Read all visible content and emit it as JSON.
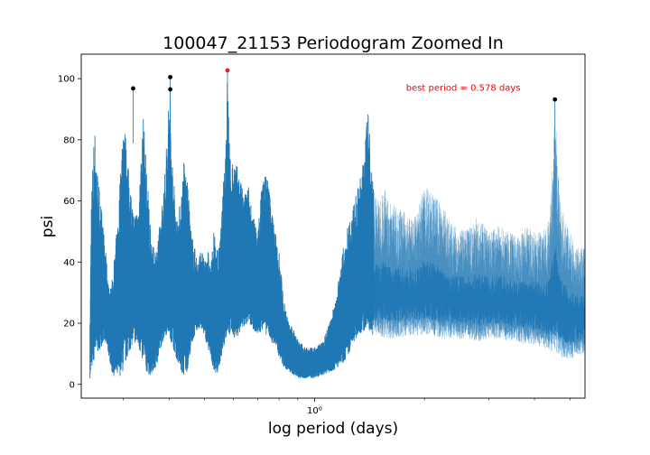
{
  "chart_data": {
    "type": "line",
    "title": "100047_21153 Periodogram Zoomed In",
    "xlabel": "log period (days)",
    "ylabel": "psi",
    "xscale": "log",
    "xlim": [
      0.23,
      5.5
    ],
    "ylim": [
      -4.5,
      108
    ],
    "yticks": [
      0,
      20,
      40,
      60,
      80,
      100
    ],
    "ytick_labels": [
      "0",
      "20",
      "40",
      "60",
      "80",
      "100"
    ],
    "xticks_major": [
      1.0
    ],
    "xtick_labels": [
      "10⁰"
    ],
    "xticks_minor": [
      0.3,
      0.4,
      0.5,
      0.6,
      0.7,
      0.8,
      0.9,
      2,
      3,
      4,
      5
    ],
    "grid": false,
    "line_color": "#1f77b4",
    "series": [
      {
        "envelope_x": [
          0.243,
          0.245,
          0.25,
          0.255,
          0.26,
          0.265,
          0.27,
          0.275,
          0.28,
          0.29,
          0.3,
          0.31,
          0.32,
          0.33,
          0.34,
          0.35,
          0.36,
          0.37,
          0.38,
          0.39,
          0.4,
          0.41,
          0.42,
          0.43,
          0.44,
          0.45,
          0.46,
          0.47,
          0.48,
          0.49,
          0.5,
          0.51,
          0.52,
          0.53,
          0.54,
          0.55,
          0.56,
          0.57,
          0.578,
          0.59,
          0.6,
          0.62,
          0.64,
          0.66,
          0.68,
          0.7,
          0.72,
          0.74,
          0.76,
          0.78,
          0.8,
          0.82,
          0.85,
          0.88,
          0.91,
          0.95,
          1.0,
          1.05,
          1.1,
          1.15,
          1.2,
          1.25,
          1.3,
          1.35,
          1.4,
          1.45,
          1.5,
          1.55,
          1.6,
          1.7,
          1.8,
          1.9,
          2.0,
          2.2,
          2.4,
          2.6,
          2.8,
          3.0,
          3.2,
          3.4,
          3.6,
          3.8,
          4.0,
          4.2,
          4.4,
          4.55,
          4.7,
          5.0,
          5.2,
          5.5
        ],
        "envelope_low": [
          2,
          4,
          8,
          10,
          12,
          14,
          12,
          8,
          3,
          2,
          4,
          10,
          14,
          12,
          6,
          3,
          3,
          6,
          12,
          16,
          16,
          12,
          8,
          4,
          2,
          5,
          12,
          16,
          18,
          18,
          16,
          12,
          8,
          5,
          3,
          6,
          10,
          14,
          16,
          16,
          15,
          16,
          18,
          20,
          18,
          16,
          18,
          16,
          14,
          12,
          9,
          6,
          4,
          3,
          2,
          2,
          2,
          3,
          4,
          5,
          7,
          10,
          15,
          17,
          18,
          16,
          15,
          15,
          15,
          15,
          16,
          16,
          16,
          15,
          15,
          15,
          14,
          15,
          15,
          14,
          14,
          13,
          13,
          12,
          11,
          10,
          9,
          8,
          9,
          10
        ],
        "envelope_high": [
          20,
          62,
          85,
          70,
          60,
          50,
          40,
          30,
          35,
          55,
          90,
          70,
          55,
          60,
          88,
          65,
          45,
          45,
          55,
          70,
          95,
          70,
          55,
          60,
          75,
          65,
          50,
          45,
          40,
          45,
          40,
          45,
          38,
          50,
          45,
          45,
          60,
          78,
          102,
          70,
          75,
          70,
          62,
          65,
          55,
          50,
          68,
          70,
          60,
          50,
          45,
          30,
          20,
          18,
          14,
          12,
          12,
          14,
          20,
          30,
          45,
          55,
          62,
          70,
          90,
          65,
          60,
          65,
          60,
          58,
          55,
          55,
          65,
          60,
          52,
          50,
          55,
          50,
          52,
          50,
          48,
          52,
          50,
          50,
          55,
          92,
          60,
          50,
          45,
          45
        ]
      }
    ],
    "peaks": [
      {
        "period": 0.319,
        "psi": 96.8,
        "color": "#000000"
      },
      {
        "period": 0.403,
        "psi": 100.5,
        "color": "#000000"
      },
      {
        "period": 0.403,
        "psi": 96.5,
        "color": "#000000"
      },
      {
        "period": 0.578,
        "psi": 102.7,
        "color": "#d62728"
      },
      {
        "period": 4.55,
        "psi": 93.2,
        "color": "#000000"
      }
    ],
    "annotation": {
      "text": "best period = 0.578 days",
      "color": "#ff0000",
      "period": 1.78,
      "psi": 97
    }
  }
}
